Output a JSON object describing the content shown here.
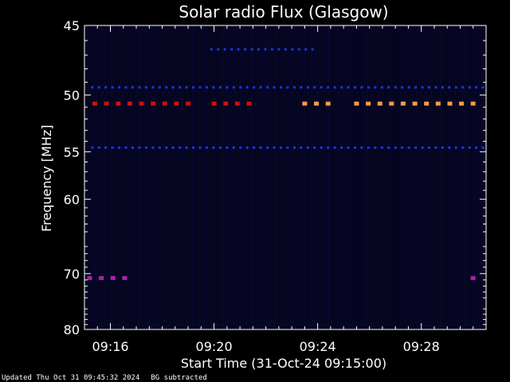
{
  "chart_data": {
    "type": "heatmap",
    "title": "Solar radio Flux (Glasgow)",
    "xlabel": "Start Time (31-Oct-24 09:15:00)",
    "ylabel": "Frequency [MHz]",
    "x_range_minutes": [
      0,
      15.5
    ],
    "ylim": [
      45,
      80
    ],
    "x_ticks": [
      {
        "label": "09:16",
        "minute": 1
      },
      {
        "label": "09:20",
        "minute": 5
      },
      {
        "label": "09:24",
        "minute": 9
      },
      {
        "label": "09:28",
        "minute": 13
      }
    ],
    "y_ticks": [
      {
        "label": "45",
        "mhz": 45
      },
      {
        "label": "50",
        "mhz": 50
      },
      {
        "label": "55",
        "mhz": 55
      },
      {
        "label": "60",
        "mhz": 60
      },
      {
        "label": "70",
        "mhz": 70
      },
      {
        "label": "80",
        "mhz": 80
      }
    ],
    "features": [
      {
        "band_mhz": 50.7,
        "minute_start": 0.4,
        "minute_end": 4.4,
        "intensity": "high",
        "color": "#cc1111"
      },
      {
        "band_mhz": 50.7,
        "minute_start": 5.0,
        "minute_end": 6.6,
        "intensity": "high",
        "color": "#cc1111"
      },
      {
        "band_mhz": 50.7,
        "minute_start": 8.5,
        "minute_end": 9.8,
        "intensity": "very high",
        "color": "#ff9944"
      },
      {
        "band_mhz": 50.7,
        "minute_start": 10.5,
        "minute_end": 15.3,
        "intensity": "very high",
        "color": "#ff9944"
      },
      {
        "band_mhz": 49.4,
        "minute_start": 0.3,
        "minute_end": 15.4,
        "intensity": "low",
        "color": "#2233dd"
      },
      {
        "band_mhz": 54.6,
        "minute_start": 0.3,
        "minute_end": 15.4,
        "intensity": "low",
        "color": "#2233dd"
      },
      {
        "band_mhz": 46.6,
        "minute_start": 4.9,
        "minute_end": 9.0,
        "intensity": "low",
        "color": "#2233dd"
      },
      {
        "band_mhz": 70.7,
        "minute_start": 0.2,
        "minute_end": 1.6,
        "intensity": "medium",
        "color": "#aa22aa"
      },
      {
        "band_mhz": 70.7,
        "minute_start": 15.0,
        "minute_end": 15.2,
        "intensity": "medium",
        "color": "#aa22aa"
      }
    ]
  },
  "colors": {
    "background": "#000000",
    "axis": "#ffffff",
    "field": "#050520"
  },
  "footer": {
    "updated": "Updated Thu Oct 31 09:45:32 2024",
    "bg_note": "BG subtracted"
  }
}
